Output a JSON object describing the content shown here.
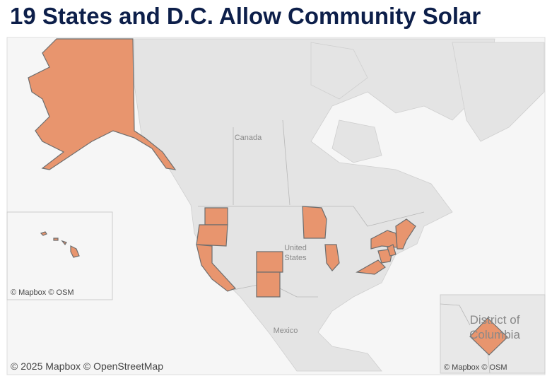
{
  "header": {
    "title": "19 States and D.C. Allow Community Solar"
  },
  "map": {
    "labels": {
      "country_1": "Canada",
      "country_2": [
        "United",
        "States"
      ],
      "country_3": "Mexico"
    },
    "attribution": "© 2025 Mapbox © OpenStreetMap"
  },
  "insets": [
    {
      "name": "Hawaii",
      "attribution": "© Mapbox © OSM"
    },
    {
      "name": "District of Columbia",
      "label": [
        "District of",
        "Columbia"
      ],
      "attribution": "© Mapbox © OSM"
    }
  ]
}
